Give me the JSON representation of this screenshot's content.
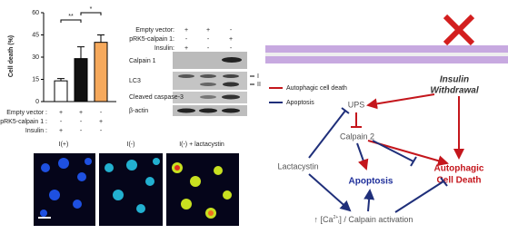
{
  "chart_data": {
    "type": "bar",
    "y_label": "Cell death (%)",
    "values": [
      14,
      29,
      40
    ],
    "errors": [
      1.5,
      8,
      5
    ],
    "colors": [
      "#ffffff",
      "#111111",
      "#f6a95c"
    ],
    "ylim": [
      0,
      60
    ],
    "yticks": [
      0,
      15,
      30,
      45,
      60
    ],
    "annotations": [
      "**",
      "*"
    ],
    "conditions": [
      {
        "label": "Empty vector :",
        "signs": [
          "+",
          "+",
          "-"
        ]
      },
      {
        "label": "pRK5-calpain 1 :",
        "signs": [
          "-",
          "-",
          "+"
        ]
      },
      {
        "label": "Insulin :",
        "signs": [
          "+",
          "-",
          "-"
        ]
      }
    ]
  },
  "blot": {
    "conditions": [
      {
        "label": "Empty vector:",
        "signs": [
          "+",
          "+",
          "-"
        ]
      },
      {
        "label": "pRK5-calpain 1:",
        "signs": [
          "-",
          "-",
          "+"
        ]
      },
      {
        "label": "Insulin:",
        "signs": [
          "+",
          "-",
          "-"
        ]
      }
    ],
    "bands": [
      "Calpain 1",
      "LC3",
      "Cleaved caspase-3",
      "β-actin"
    ],
    "lc3_forms": [
      "I",
      "II"
    ]
  },
  "microscopy": {
    "panels": [
      "I(+)",
      "I(-)",
      "I(-) + lactacystin"
    ]
  },
  "diagram": {
    "legend": [
      "Autophagic cell death",
      "Apoptosis"
    ],
    "insulin": [
      "Insulin",
      "Withdrawal"
    ],
    "ups": "UPS",
    "calpain2": "Calpain 2",
    "lactacystin": "Lactacystin",
    "apoptosis": "Apoptosis",
    "autophagic": [
      "Autophagic",
      "Cell Death"
    ],
    "calcium": {
      "prefix": "↑ [Ca",
      "sup": "2+",
      "sub": "i",
      "rest": "] / Calpain activation"
    }
  }
}
